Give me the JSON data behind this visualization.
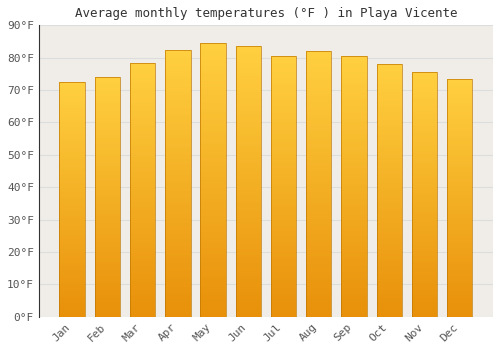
{
  "title": "Average monthly temperatures (°F ) in Playa Vicente",
  "months": [
    "Jan",
    "Feb",
    "Mar",
    "Apr",
    "May",
    "Jun",
    "Jul",
    "Aug",
    "Sep",
    "Oct",
    "Nov",
    "Dec"
  ],
  "values": [
    72.5,
    74.0,
    78.5,
    82.5,
    84.5,
    83.5,
    80.5,
    82.0,
    80.5,
    78.0,
    75.5,
    73.5
  ],
  "bar_color_bottom": "#E8900A",
  "bar_color_top": "#FFD060",
  "bar_color_mid": "#FFA500",
  "background_color": "#FFFFFF",
  "plot_bg_color": "#F0EDE8",
  "grid_color": "#DDDDDD",
  "ylim": [
    0,
    90
  ],
  "yticks": [
    0,
    10,
    20,
    30,
    40,
    50,
    60,
    70,
    80,
    90
  ],
  "ytick_labels": [
    "0°F",
    "10°F",
    "20°F",
    "30°F",
    "40°F",
    "50°F",
    "60°F",
    "70°F",
    "80°F",
    "90°F"
  ],
  "title_fontsize": 9,
  "tick_fontsize": 8,
  "font_family": "monospace"
}
